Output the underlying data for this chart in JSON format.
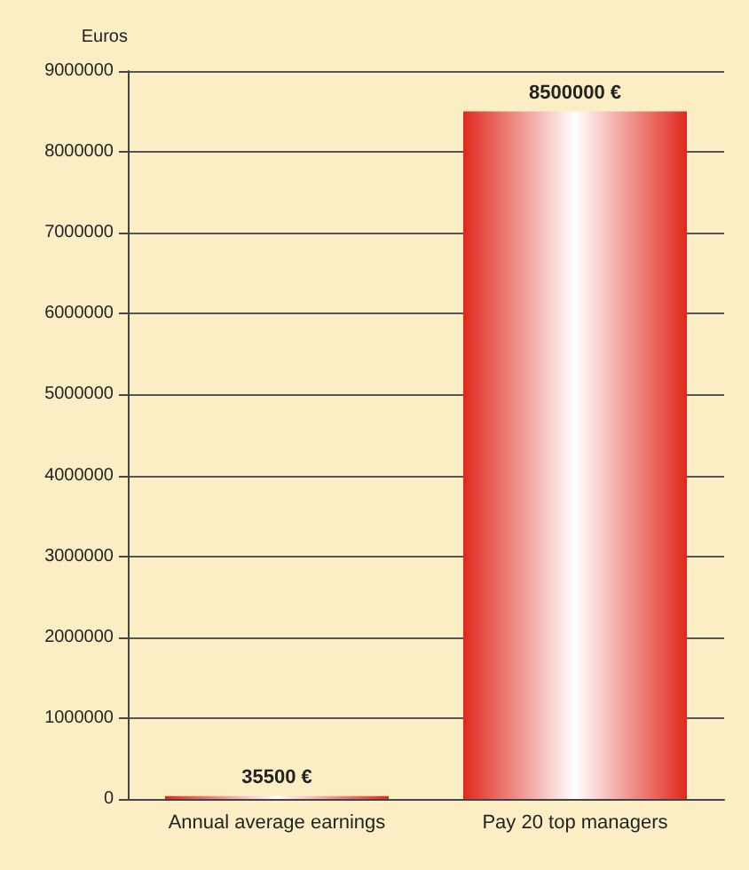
{
  "chart_data": {
    "type": "bar",
    "ylabel": "Euros",
    "categories": [
      "Annual average earnings",
      "Pay 20 top managers"
    ],
    "values": [
      35500,
      8500000
    ],
    "value_labels": [
      "35500 €",
      "8500000 €"
    ],
    "color": "#e0281e",
    "ylim": [
      0,
      9000000
    ],
    "yticks": [
      0,
      1000000,
      2000000,
      3000000,
      4000000,
      5000000,
      6000000,
      7000000,
      8000000,
      9000000
    ],
    "grid": "y"
  }
}
